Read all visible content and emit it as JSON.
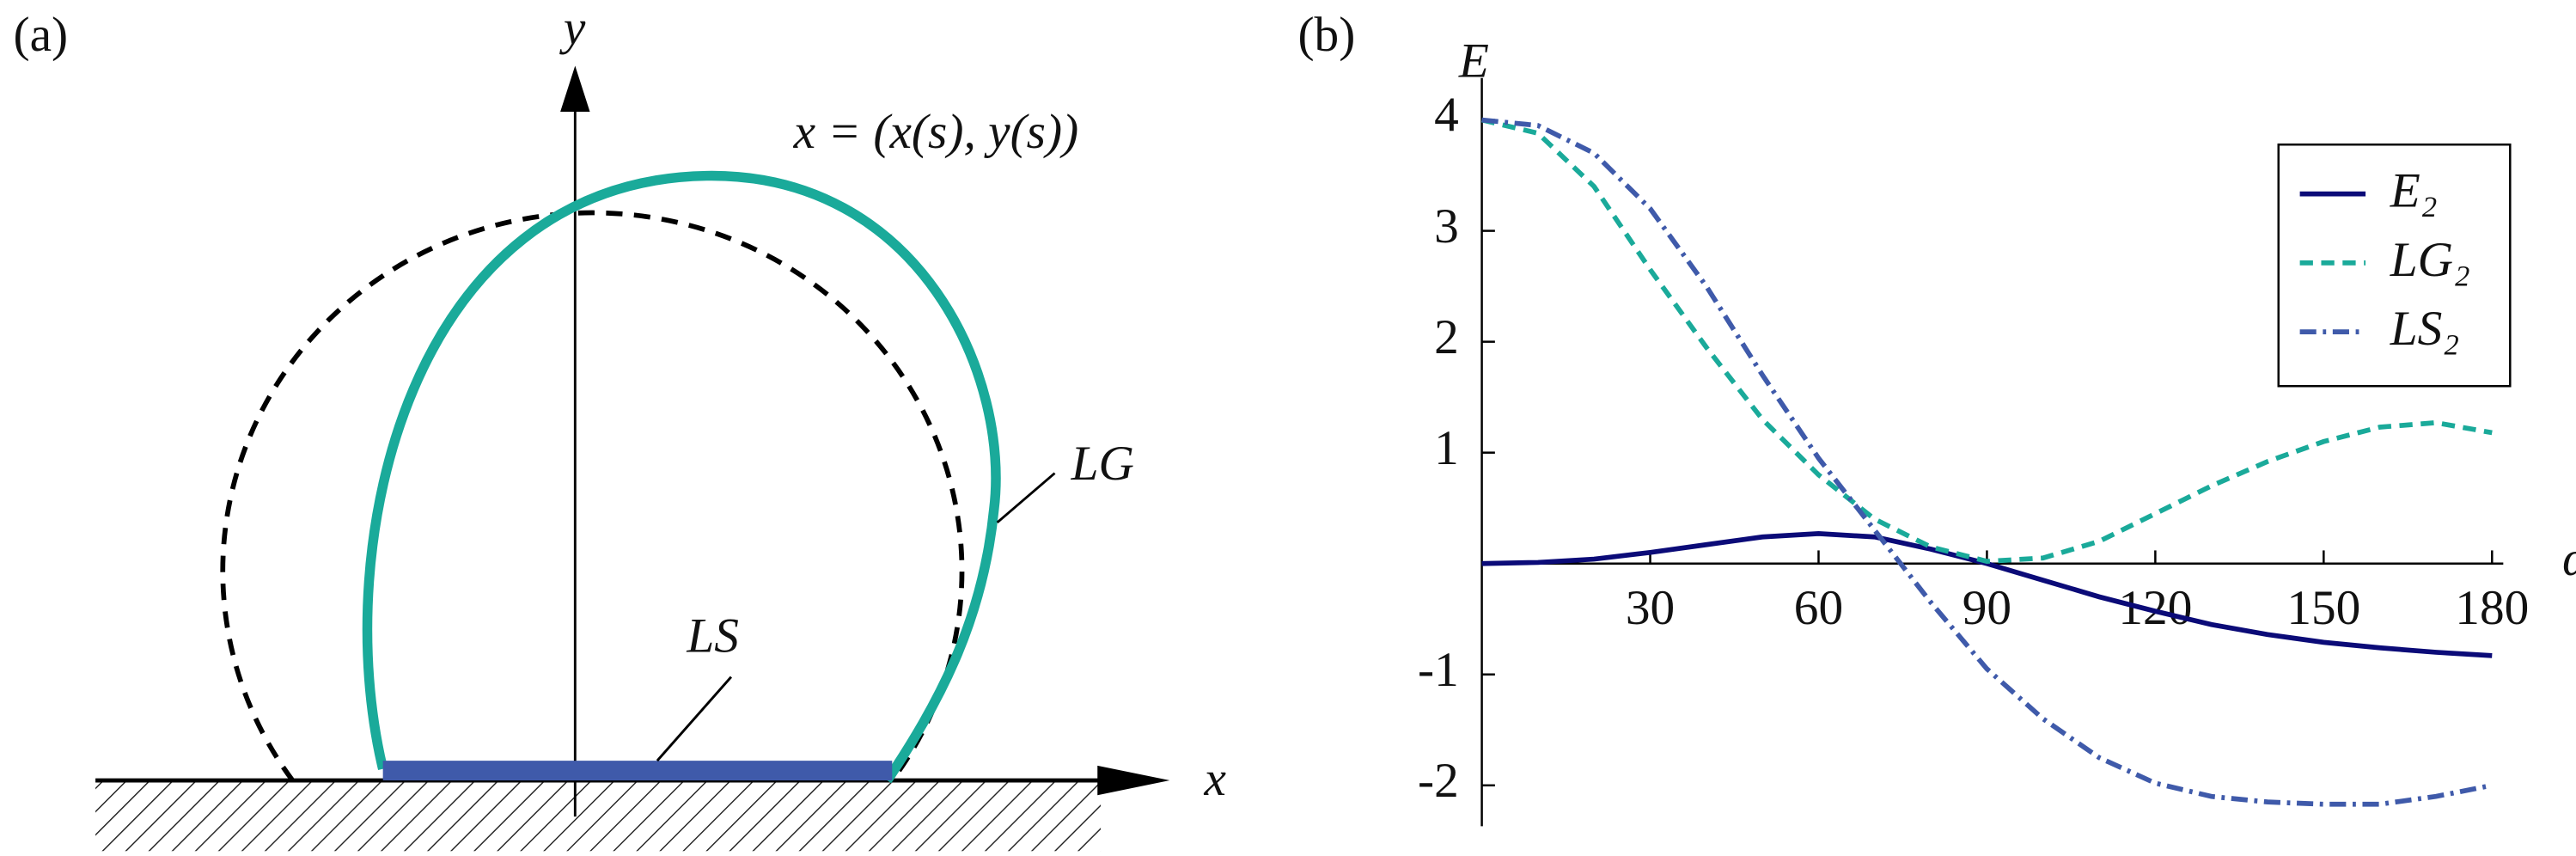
{
  "diagram": {
    "panel_label": "(a)",
    "y_axis": "y",
    "x_axis": "x",
    "equation": "x = (x(s), y(s))",
    "curve_label": "LG",
    "base_label": "LS"
  },
  "chart_data": {
    "type": "line",
    "panel_label": "(b)",
    "y_label": "E",
    "x_label": "α",
    "x": [
      0,
      10,
      20,
      30,
      40,
      50,
      60,
      70,
      80,
      90,
      100,
      110,
      120,
      130,
      140,
      150,
      160,
      170,
      180
    ],
    "series": [
      {
        "name": "E₂",
        "color": "#0b0b78",
        "dash": "solid",
        "values": [
          0,
          0.01,
          0.04,
          0.1,
          0.17,
          0.24,
          0.27,
          0.24,
          0.13,
          0.0,
          -0.15,
          -0.3,
          -0.43,
          -0.55,
          -0.64,
          -0.71,
          -0.76,
          -0.8,
          -0.83
        ]
      },
      {
        "name": "LG₂",
        "color": "#1aaa9a",
        "dash": "dashed",
        "values": [
          4,
          3.88,
          3.4,
          2.65,
          1.95,
          1.3,
          0.8,
          0.4,
          0.15,
          0.02,
          0.05,
          0.2,
          0.45,
          0.7,
          0.92,
          1.1,
          1.23,
          1.27,
          1.18
        ]
      },
      {
        "name": "LS₂",
        "color": "#3f5aaa",
        "dash": "dashdot",
        "values": [
          4,
          3.95,
          3.7,
          3.2,
          2.5,
          1.7,
          0.95,
          0.3,
          -0.35,
          -0.95,
          -1.4,
          -1.75,
          -1.98,
          -2.1,
          -2.15,
          -2.17,
          -2.17,
          -2.1,
          -2.0
        ]
      }
    ],
    "xlim": [
      0,
      182
    ],
    "ylim": [
      -2.25,
      4.2
    ],
    "xticks": [
      30,
      60,
      90,
      120,
      150,
      180
    ],
    "yticks": [
      -2,
      -1,
      1,
      2,
      3,
      4
    ],
    "legend": "upper right"
  }
}
